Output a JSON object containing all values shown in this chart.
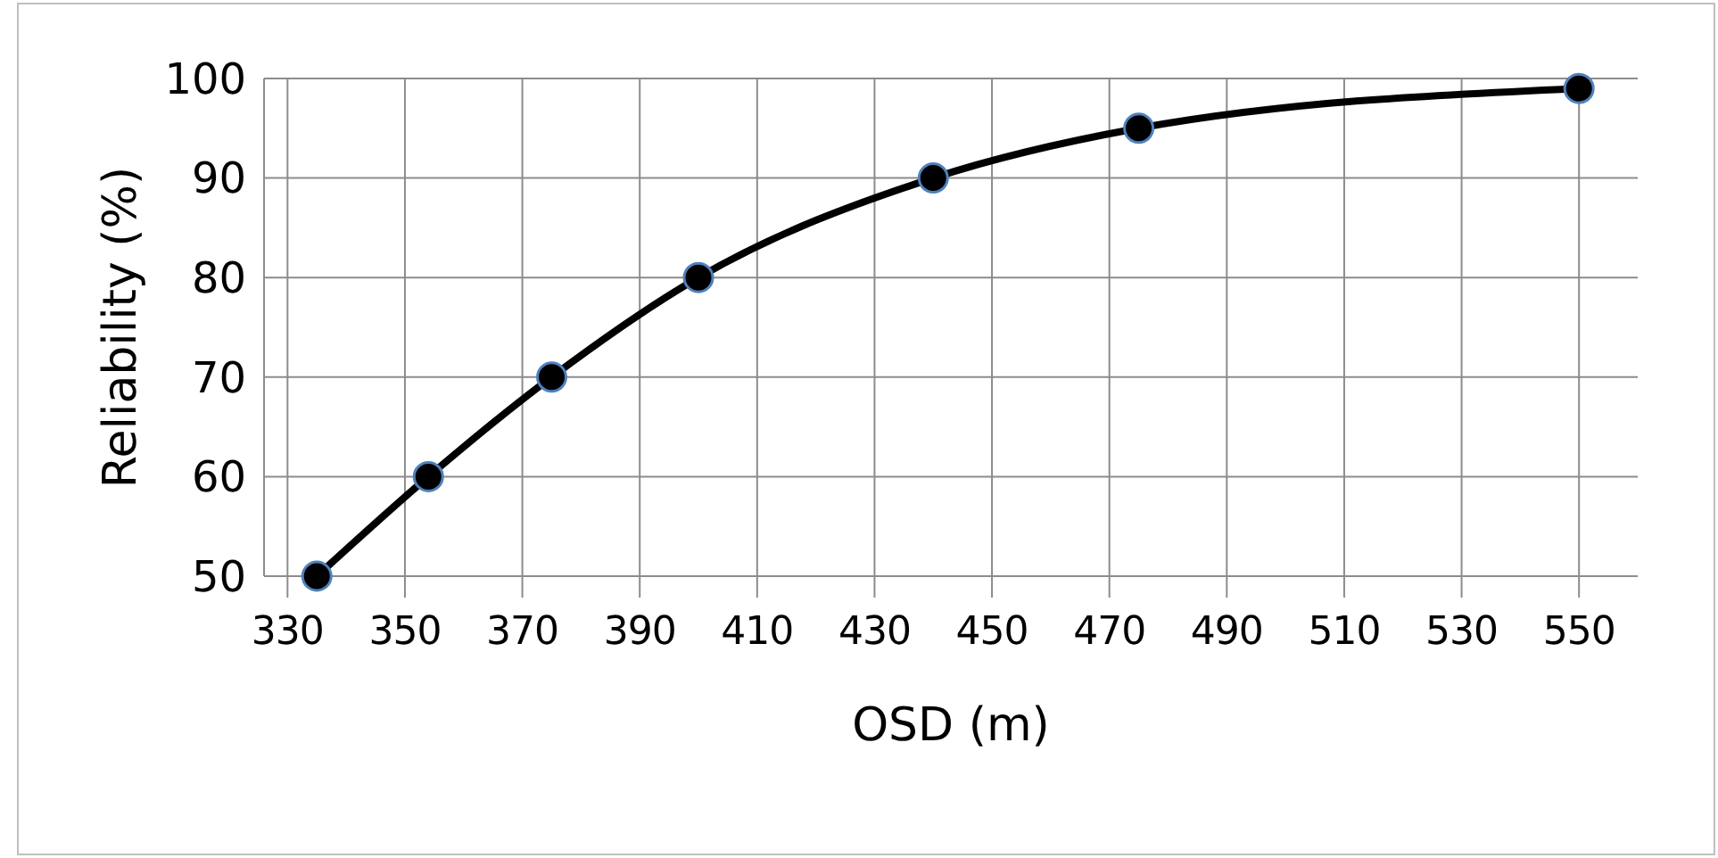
{
  "chart_data": {
    "type": "line",
    "xlabel": "OSD (m)",
    "ylabel": "Reliability (%)",
    "x": [
      335,
      354,
      375,
      400,
      440,
      475,
      550
    ],
    "series": [
      {
        "color": "#000000",
        "values": [
          50,
          60,
          70,
          80,
          90,
          95,
          99
        ]
      }
    ],
    "xlim": [
      326,
      560
    ],
    "xticks": [
      330,
      350,
      370,
      390,
      410,
      430,
      450,
      470,
      490,
      510,
      530,
      550
    ],
    "ylim": [
      50,
      100
    ],
    "yticks": [
      50,
      60,
      70,
      80,
      90,
      100
    ],
    "grid": true,
    "marker": "circle",
    "line_style": "solid"
  }
}
